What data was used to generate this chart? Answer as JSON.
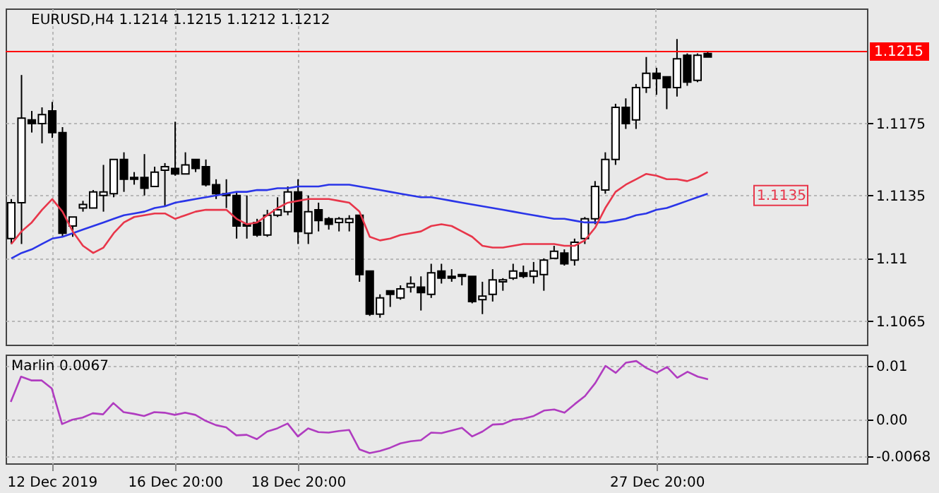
{
  "chart_data": [
    {
      "type": "candlestick",
      "title": "EURUSD,H4  1.1214 1.1215 1.1212 1.1212",
      "categories": [
        null,
        null,
        null,
        null,
        null,
        null,
        null,
        null,
        null,
        null,
        null,
        null,
        null,
        null,
        null,
        null,
        null,
        null,
        null,
        null,
        null,
        null,
        null,
        null,
        null,
        null,
        null,
        null,
        null,
        null,
        null,
        null,
        null,
        null,
        null,
        null,
        null,
        null,
        null,
        null,
        null,
        null,
        null,
        null,
        null,
        null,
        null,
        null,
        null,
        null,
        null,
        null,
        null,
        null,
        null,
        null,
        null,
        null,
        null,
        null,
        null,
        null,
        null,
        null,
        null,
        null,
        null,
        null,
        null,
        null,
        null,
        null,
        null,
        null,
        null,
        null,
        null,
        null,
        null,
        null,
        null,
        null,
        null,
        null
      ],
      "ohlc": [
        [
          1.1111,
          1.1133,
          1.1108,
          1.1131
        ],
        [
          1.1131,
          1.1202,
          1.1108,
          1.1178
        ],
        [
          1.1177,
          1.1182,
          1.117,
          1.1175
        ],
        [
          1.1175,
          1.1184,
          1.1164,
          1.118
        ],
        [
          1.1182,
          1.1187,
          1.1167,
          1.117
        ],
        [
          1.117,
          1.1173,
          1.1112,
          1.1114
        ],
        [
          1.1118,
          1.1123,
          1.1112,
          1.1123
        ],
        [
          1.1128,
          1.1132,
          1.1126,
          1.113
        ],
        [
          1.1128,
          1.1138,
          1.1128,
          1.1137
        ],
        [
          1.1135,
          1.1152,
          1.1126,
          1.1137
        ],
        [
          1.1136,
          1.1155,
          1.1134,
          1.1155
        ],
        [
          1.1155,
          1.1159,
          1.1137,
          1.1144
        ],
        [
          1.1145,
          1.1148,
          1.1141,
          1.1144
        ],
        [
          1.1145,
          1.1158,
          1.1135,
          1.1139
        ],
        [
          1.114,
          1.1151,
          1.114,
          1.1148
        ],
        [
          1.1149,
          1.1153,
          1.1129,
          1.1151
        ],
        [
          1.115,
          1.1176,
          1.1146,
          1.1147
        ],
        [
          1.1147,
          1.1159,
          1.1147,
          1.1152
        ],
        [
          1.1155,
          1.1155,
          1.1148,
          1.115
        ],
        [
          1.1151,
          1.1155,
          1.114,
          1.1141
        ],
        [
          1.1141,
          1.1144,
          1.1133,
          1.1136
        ],
        [
          1.1136,
          1.1144,
          1.1128,
          1.1135
        ],
        [
          1.1135,
          1.1137,
          1.1111,
          1.1118
        ],
        [
          1.1119,
          1.1135,
          1.1111,
          1.1118
        ],
        [
          1.112,
          1.1122,
          1.1112,
          1.1113
        ],
        [
          1.1113,
          1.1127,
          1.1112,
          1.1124
        ],
        [
          1.1124,
          1.1134,
          1.1123,
          1.1127
        ],
        [
          1.1126,
          1.114,
          1.1124,
          1.1137
        ],
        [
          1.1137,
          1.1144,
          1.1108,
          1.1115
        ],
        [
          1.1114,
          1.1135,
          1.1108,
          1.1126
        ],
        [
          1.1127,
          1.1131,
          1.1115,
          1.1121
        ],
        [
          1.1122,
          1.1123,
          1.1116,
          1.1119
        ],
        [
          1.112,
          1.1123,
          1.1115,
          1.1122
        ],
        [
          1.112,
          1.1124,
          1.1115,
          1.1122
        ],
        [
          1.1124,
          1.1124,
          1.1087,
          1.1091
        ],
        [
          1.1093,
          1.1093,
          1.1068,
          1.1069
        ],
        [
          1.1069,
          1.108,
          1.1067,
          1.1078
        ],
        [
          1.1082,
          1.1082,
          1.1073,
          1.108
        ],
        [
          1.1078,
          1.1085,
          1.1077,
          1.1083
        ],
        [
          1.1084,
          1.109,
          1.1081,
          1.1086
        ],
        [
          1.1084,
          1.109,
          1.1071,
          1.1081
        ],
        [
          1.108,
          1.1097,
          1.1078,
          1.1092
        ],
        [
          1.1093,
          1.1097,
          1.1086,
          1.1089
        ],
        [
          1.109,
          1.1094,
          1.1087,
          1.1089
        ],
        [
          1.1091,
          1.1091,
          1.1085,
          1.109
        ],
        [
          1.109,
          1.109,
          1.1075,
          1.1076
        ],
        [
          1.1077,
          1.1087,
          1.1069,
          1.1079
        ],
        [
          1.108,
          1.1094,
          1.1076,
          1.1088
        ],
        [
          1.1087,
          1.1089,
          1.1082,
          1.1088
        ],
        [
          1.1089,
          1.1097,
          1.1088,
          1.1093
        ],
        [
          1.1092,
          1.1096,
          1.1089,
          1.109
        ],
        [
          1.109,
          1.1098,
          1.1086,
          1.1093
        ],
        [
          1.1091,
          1.11,
          1.1082,
          1.1099
        ],
        [
          1.11,
          1.1107,
          1.11,
          1.1104
        ],
        [
          1.1103,
          1.1105,
          1.1096,
          1.1097
        ],
        [
          1.1099,
          1.1111,
          1.1096,
          1.1109
        ],
        [
          1.1111,
          1.1123,
          1.1108,
          1.1122
        ],
        [
          1.1122,
          1.1143,
          1.1119,
          1.114
        ],
        [
          1.1138,
          1.1159,
          1.1136,
          1.1155
        ],
        [
          1.1155,
          1.1186,
          1.1152,
          1.1184
        ],
        [
          1.1184,
          1.1189,
          1.1172,
          1.1175
        ],
        [
          1.1177,
          1.1197,
          1.1172,
          1.1195
        ],
        [
          1.1195,
          1.1212,
          1.1192,
          1.1203
        ],
        [
          1.1203,
          1.1206,
          1.1191,
          1.12
        ],
        [
          1.1201,
          1.1201,
          1.1183,
          1.1195
        ],
        [
          1.1195,
          1.1222,
          1.119,
          1.1211
        ],
        [
          1.1213,
          1.1214,
          1.1196,
          1.1198
        ],
        [
          1.1199,
          1.1214,
          1.1198,
          1.1213
        ],
        [
          1.1214,
          1.1215,
          1.1212,
          1.1212
        ],
        null,
        null,
        null,
        null,
        null,
        null,
        null,
        null,
        null,
        null,
        null,
        null,
        null,
        null,
        null
      ],
      "series": [
        {
          "type": "line",
          "color": "#2a35e8",
          "values": [
            1.11,
            1.1103,
            1.1105,
            1.1108,
            1.1111,
            1.1112,
            1.1114,
            1.1116,
            1.1118,
            1.112,
            1.1122,
            1.1124,
            1.1125,
            1.1126,
            1.1128,
            1.1129,
            1.1131,
            1.1132,
            1.1133,
            1.1134,
            1.1135,
            1.1136,
            1.1137,
            1.1137,
            1.1138,
            1.1138,
            1.1139,
            1.1139,
            1.114,
            1.114,
            1.114,
            1.1141,
            1.1141,
            1.1141,
            1.114,
            1.1139,
            1.1138,
            1.1137,
            1.1136,
            1.1135,
            1.1134,
            1.1134,
            1.1133,
            1.1132,
            1.1131,
            1.113,
            1.1129,
            1.1128,
            1.1127,
            1.1126,
            1.1125,
            1.1124,
            1.1123,
            1.1122,
            1.1122,
            1.1121,
            1.112,
            1.112,
            1.112,
            1.1121,
            1.1122,
            1.1124,
            1.1125,
            1.1127,
            1.1128,
            1.113,
            1.1132,
            1.1134,
            1.1136,
            null,
            null,
            null,
            null,
            null,
            null,
            null,
            null,
            null,
            null,
            null,
            null,
            null,
            null,
            null
          ]
        },
        {
          "type": "line",
          "color": "#e8364a",
          "values": [
            1.1108,
            1.1115,
            1.112,
            1.1127,
            1.1133,
            1.1126,
            1.1115,
            1.1107,
            1.1103,
            1.1106,
            1.1114,
            1.112,
            1.1123,
            1.1124,
            1.1125,
            1.1125,
            1.1122,
            1.1124,
            1.1126,
            1.1127,
            1.1127,
            1.1127,
            1.1122,
            1.1119,
            1.112,
            1.1124,
            1.1128,
            1.1131,
            1.1132,
            1.1133,
            1.1133,
            1.1133,
            1.1132,
            1.1131,
            1.1126,
            1.1112,
            1.111,
            1.1111,
            1.1113,
            1.1114,
            1.1115,
            1.1118,
            1.1119,
            1.1118,
            1.1115,
            1.1112,
            1.1107,
            1.1106,
            1.1106,
            1.1107,
            1.1108,
            1.1108,
            1.1108,
            1.1108,
            1.1107,
            1.1107,
            1.111,
            1.1117,
            1.1128,
            1.1137,
            1.1141,
            1.1144,
            1.1147,
            1.1146,
            1.1144,
            1.1144,
            1.1143,
            1.1145,
            1.1148,
            null,
            null,
            null,
            null,
            null,
            null,
            null,
            null,
            null,
            null,
            null,
            null,
            null,
            null,
            null
          ]
        }
      ],
      "ylim": [
        1.1052,
        1.1239
      ],
      "yticks": [
        1.1065,
        1.11,
        1.1135,
        1.1175
      ],
      "ref_lines": [
        {
          "axis": "y",
          "value": 1.1215,
          "label": "1.1215",
          "color": "#ff0000"
        }
      ],
      "annotations": [
        {
          "text": "1.1135",
          "y": 1.1135
        }
      ],
      "grid": true,
      "tick_labels": "y",
      "line_style": "solid"
    },
    {
      "type": "line",
      "title": "Marlin 0.0067",
      "categories": [
        null,
        null,
        null,
        null,
        "12 Dec 2019",
        null,
        null,
        null,
        null,
        null,
        null,
        null,
        null,
        null,
        null,
        null,
        "16 Dec 20:00",
        null,
        null,
        null,
        null,
        null,
        null,
        null,
        null,
        null,
        null,
        null,
        "18 Dec 20:00",
        null,
        null,
        null,
        null,
        null,
        null,
        null,
        null,
        null,
        null,
        null,
        null,
        null,
        null,
        null,
        null,
        null,
        null,
        null,
        null,
        null,
        null,
        null,
        null,
        null,
        null,
        null,
        null,
        null,
        null,
        null,
        null,
        null,
        null,
        "27 Dec 20:00",
        null,
        null,
        null,
        null,
        null,
        null,
        null,
        null,
        null,
        null,
        null,
        null,
        null,
        null,
        null,
        null,
        null,
        null,
        null,
        null
      ],
      "series": [
        {
          "color": "#b03cc0",
          "values": [
            0.0033,
            0.008,
            0.0073,
            0.0073,
            0.0058,
            -0.0008,
            0.0,
            0.0004,
            0.0012,
            0.001,
            0.0031,
            0.0014,
            0.0011,
            0.0007,
            0.0014,
            0.0013,
            0.0009,
            0.0013,
            0.0009,
            -0.0002,
            -0.001,
            -0.0014,
            -0.0029,
            -0.0028,
            -0.0036,
            -0.0022,
            -0.0016,
            -0.0007,
            -0.0031,
            -0.0016,
            -0.0023,
            -0.0024,
            -0.0021,
            -0.0019,
            -0.0055,
            -0.0062,
            -0.0058,
            -0.0052,
            -0.0044,
            -0.004,
            -0.0038,
            -0.0024,
            -0.0025,
            -0.002,
            -0.0015,
            -0.0031,
            -0.0022,
            -0.0009,
            -0.0008,
            0.0,
            0.0002,
            0.0007,
            0.0017,
            0.0019,
            0.0013,
            0.0029,
            0.0044,
            0.0068,
            0.01,
            0.0087,
            0.0106,
            0.0109,
            0.0096,
            0.0087,
            0.0098,
            0.0078,
            0.0089,
            0.008,
            0.0075,
            null,
            null,
            null,
            null,
            null,
            null,
            null,
            null,
            null,
            null,
            null,
            null,
            null,
            null,
            null
          ]
        }
      ],
      "ylim": [
        -0.0081,
        0.0121
      ],
      "yticks": [
        0.01,
        {
          "value": 0,
          "label": "0.00"
        },
        -0.0068
      ],
      "grid": true,
      "line_style": "solid",
      "marker": "none"
    }
  ]
}
